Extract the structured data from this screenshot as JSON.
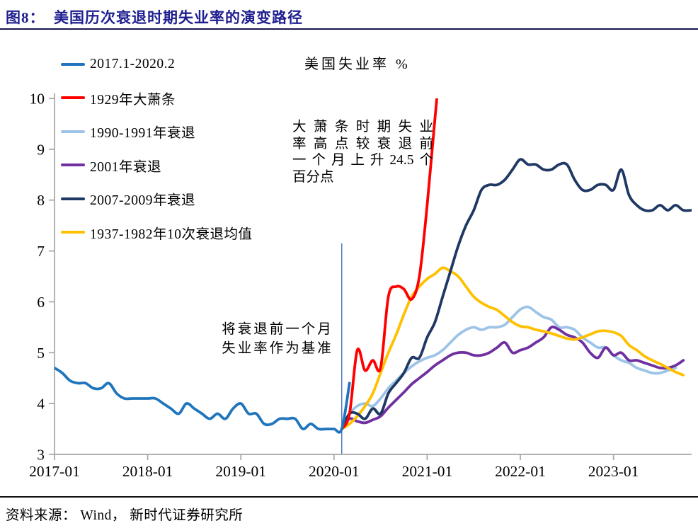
{
  "figure": {
    "title": "图8：  美国历次衰退时期失业率的演变路径",
    "source": "资料来源： Wind， 新时代证券研究所"
  },
  "chart_data": {
    "type": "line",
    "title": "美国失业率 %",
    "xlabel": "",
    "ylabel": "",
    "x_tick_labels": [
      "2017-01",
      "2018-01",
      "2019-01",
      "2020-01",
      "2021-01",
      "2022-01",
      "2023-01"
    ],
    "x_tick_month_indices": [
      0,
      12,
      24,
      36,
      48,
      60,
      72
    ],
    "y_ticks": [
      3,
      4,
      5,
      6,
      7,
      8,
      9,
      10
    ],
    "ylim": [
      3,
      10
    ],
    "grid": false,
    "legend_position": "upper-left-vertical",
    "axis_color": "#A6A6A6",
    "tick_label_color": "#000000",
    "event_line": {
      "month_index": 37,
      "aligned_date": "2020-02",
      "top_value": 7.15,
      "color": "#4472C4"
    },
    "annotations": {
      "depression_note_lines": [
        "大萧条时期失业",
        "率高点较衰退前",
        "一个月上升24.5个",
        "百分点"
      ],
      "baseline_note_lines": [
        "将衰退前一个月",
        "失业率作为基准"
      ]
    },
    "series": [
      {
        "id": "2017-2020",
        "name": "2017.1-2020.2",
        "color": "#2075BC",
        "start_month_index": 0,
        "values": [
          4.7,
          4.6,
          4.45,
          4.4,
          4.4,
          4.3,
          4.3,
          4.4,
          4.2,
          4.1,
          4.1,
          4.1,
          4.1,
          4.1,
          4.0,
          3.9,
          3.8,
          4.0,
          3.9,
          3.8,
          3.7,
          3.8,
          3.7,
          3.9,
          4.0,
          3.8,
          3.8,
          3.6,
          3.6,
          3.7,
          3.7,
          3.7,
          3.5,
          3.6,
          3.5,
          3.5,
          3.5,
          3.5,
          4.4
        ]
      },
      {
        "id": "1929-depression",
        "name": "1929年大萧条",
        "color": "#FF0000",
        "start_month_index": 37,
        "values": [
          3.5,
          3.8,
          5.05,
          4.65,
          4.85,
          4.7,
          6.1,
          6.3,
          6.25,
          6.05,
          6.5,
          7.9,
          9.6,
          11.2
        ]
      },
      {
        "id": "1990-1991-recession",
        "name": "1990-1991年衰退",
        "color": "#9DC3E6",
        "start_month_index": 37,
        "values": [
          3.5,
          3.8,
          3.95,
          4.0,
          3.95,
          4.1,
          4.3,
          4.45,
          4.6,
          4.73,
          4.83,
          4.9,
          4.95,
          5.05,
          5.2,
          5.35,
          5.45,
          5.5,
          5.45,
          5.5,
          5.5,
          5.55,
          5.7,
          5.85,
          5.9,
          5.8,
          5.7,
          5.65,
          5.5,
          5.5,
          5.45,
          5.3,
          5.2,
          5.1,
          5.1,
          4.95,
          4.85,
          4.8,
          4.7,
          4.65,
          4.6,
          4.6,
          4.65,
          4.7
        ]
      },
      {
        "id": "2001-recession",
        "name": "2001年衰退",
        "color": "#7030A0",
        "start_month_index": 37,
        "values": [
          3.5,
          3.7,
          3.65,
          3.62,
          3.68,
          3.75,
          3.92,
          4.07,
          4.22,
          4.38,
          4.5,
          4.62,
          4.75,
          4.85,
          4.95,
          5.0,
          5.0,
          4.95,
          4.95,
          5.0,
          5.1,
          5.2,
          5.0,
          5.05,
          5.1,
          5.2,
          5.3,
          5.5,
          5.45,
          5.35,
          5.3,
          5.2,
          5.0,
          4.9,
          5.1,
          4.95,
          5.0,
          4.85,
          4.85,
          4.8,
          4.75,
          4.7,
          4.7,
          4.75,
          4.85
        ]
      },
      {
        "id": "2007-2009-recession",
        "name": "2007-2009年衰退",
        "color": "#1F3864",
        "start_month_index": 37,
        "values": [
          3.5,
          3.8,
          3.8,
          3.7,
          3.9,
          3.8,
          4.2,
          4.4,
          4.6,
          4.9,
          4.9,
          5.3,
          5.6,
          6.1,
          6.6,
          7.1,
          7.5,
          7.8,
          8.2,
          8.3,
          8.3,
          8.4,
          8.6,
          8.8,
          8.7,
          8.7,
          8.6,
          8.6,
          8.7,
          8.7,
          8.4,
          8.2,
          8.2,
          8.3,
          8.3,
          8.2,
          8.6,
          8.1,
          7.9,
          7.8,
          7.8,
          7.9,
          7.8,
          7.9,
          7.8,
          7.8
        ]
      },
      {
        "id": "1937-1982-average",
        "name": "1937-1982年10次衰退均值",
        "color": "#FFC000",
        "start_month_index": 37,
        "values": [
          3.5,
          3.6,
          3.75,
          3.95,
          4.2,
          4.6,
          5.0,
          5.35,
          5.75,
          6.1,
          6.3,
          6.45,
          6.55,
          6.67,
          6.6,
          6.5,
          6.3,
          6.1,
          5.98,
          5.9,
          5.84,
          5.72,
          5.6,
          5.52,
          5.5,
          5.45,
          5.42,
          5.38,
          5.33,
          5.28,
          5.26,
          5.3,
          5.36,
          5.42,
          5.43,
          5.4,
          5.33,
          5.15,
          5.05,
          4.93,
          4.85,
          4.78,
          4.7,
          4.62,
          4.56
        ]
      }
    ],
    "draw_order": [
      2,
      3,
      5,
      4,
      1,
      0
    ]
  }
}
